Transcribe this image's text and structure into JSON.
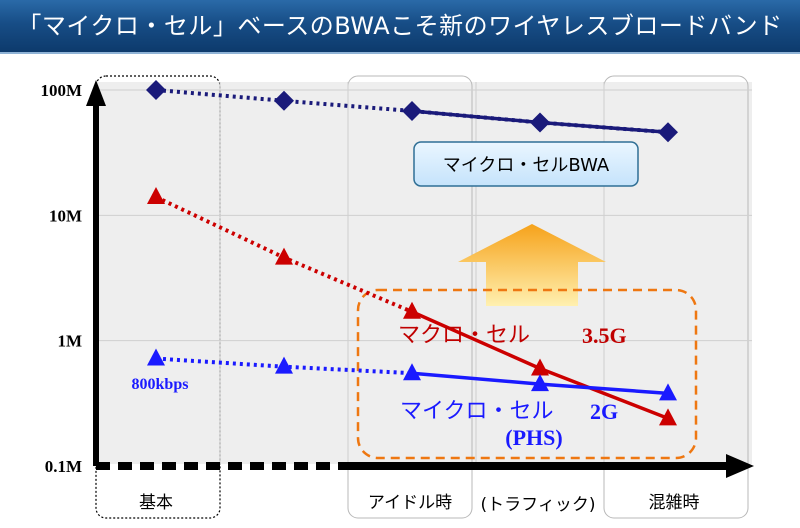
{
  "title": "「マイクロ・セル」ベースのBWAこそ新のワイヤレスブロードバンド",
  "colors": {
    "bwa": "#1a1a7a",
    "macro": "#cc0000",
    "micro": "#1a1aff",
    "accent_box": "#ee7711",
    "arrow_top": "#f6a21a",
    "arrow_bottom": "#fff0b0"
  },
  "chart_data": {
    "type": "line",
    "y_scale": "log",
    "ylim": [
      0.1,
      100
    ],
    "yticks": [
      {
        "value": 100,
        "label": "100M"
      },
      {
        "value": 10,
        "label": "10M"
      },
      {
        "value": 1,
        "label": "1M"
      },
      {
        "value": 0.1,
        "label": "0.1M"
      }
    ],
    "categories": [
      "基本",
      "アイドル時",
      "混雑時"
    ],
    "x_note": "(トラフィック)",
    "series": [
      {
        "name": "マイクロ・セルBWA",
        "marker": "diamond",
        "style": "dotted-then-solid",
        "points": [
          [
            0,
            100
          ],
          [
            1,
            82
          ],
          [
            2,
            68
          ],
          [
            3,
            55
          ],
          [
            4,
            46
          ]
        ]
      },
      {
        "name": "マクロ・セル 3.5G",
        "marker": "triangle",
        "style": "dotted-then-solid",
        "points": [
          [
            0,
            14
          ],
          [
            1,
            4.6
          ],
          [
            2,
            1.7
          ],
          [
            3,
            0.6
          ],
          [
            4,
            0.24
          ]
        ]
      },
      {
        "name": "マイクロ・セル 2G (PHS)",
        "marker": "triangle",
        "style": "dotted-then-solid",
        "points": [
          [
            0,
            0.72
          ],
          [
            1,
            0.62
          ],
          [
            2,
            0.55
          ],
          [
            3,
            0.45
          ],
          [
            4,
            0.38
          ]
        ]
      }
    ],
    "annotations": {
      "bwa_label": "マイクロ・セルBWA",
      "macro_label": "マクロ・セル",
      "macro_gen": "3.5G",
      "micro_label": "マイクロ・セル",
      "micro_gen": "2G",
      "micro_sub": "(PHS)",
      "start_rate": "800kbps"
    }
  }
}
